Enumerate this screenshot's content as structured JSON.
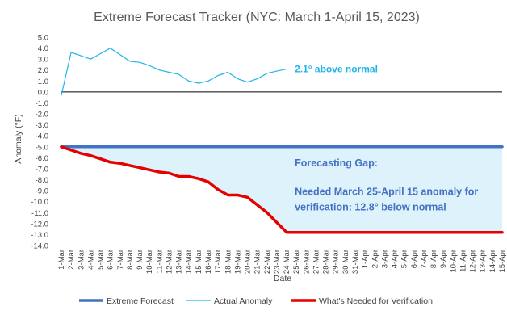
{
  "chart_data": {
    "type": "line",
    "title": "Extreme Forecast Tracker (NYC: March 1-April 15, 2023)",
    "xlabel": "Date",
    "ylabel": "Anomaly (°F)",
    "ylim": [
      -14.0,
      5.0
    ],
    "ytick_step": 1.0,
    "grid": false,
    "legend_position": "bottom",
    "categories": [
      "1-Mar",
      "2-Mar",
      "3-Mar",
      "4-Mar",
      "5-Mar",
      "6-Mar",
      "7-Mar",
      "8-Mar",
      "9-Mar",
      "10-Mar",
      "11-Mar",
      "12-Mar",
      "13-Mar",
      "14-Mar",
      "15-Mar",
      "16-Mar",
      "17-Mar",
      "18-Mar",
      "19-Mar",
      "20-Mar",
      "21-Mar",
      "22-Mar",
      "23-Mar",
      "24-Mar",
      "25-Mar",
      "26-Mar",
      "27-Mar",
      "28-Mar",
      "29-Mar",
      "30-Mar",
      "31-Mar",
      "1-Apr",
      "2-Apr",
      "3-Apr",
      "4-Apr",
      "5-Apr",
      "6-Apr",
      "7-Apr",
      "8-Apr",
      "9-Apr",
      "10-Apr",
      "11-Apr",
      "12-Apr",
      "13-Apr",
      "14-Apr",
      "15-Apr"
    ],
    "series": [
      {
        "name": "Extreme Forecast",
        "color": "#4472c4",
        "values": [
          -5.0,
          -5.0,
          -5.0,
          -5.0,
          -5.0,
          -5.0,
          -5.0,
          -5.0,
          -5.0,
          -5.0,
          -5.0,
          -5.0,
          -5.0,
          -5.0,
          -5.0,
          -5.0,
          -5.0,
          -5.0,
          -5.0,
          -5.0,
          -5.0,
          -5.0,
          -5.0,
          -5.0,
          -5.0,
          -5.0,
          -5.0,
          -5.0,
          -5.0,
          -5.0,
          -5.0,
          -5.0,
          -5.0,
          -5.0,
          -5.0,
          -5.0,
          -5.0,
          -5.0,
          -5.0,
          -5.0,
          -5.0,
          -5.0,
          -5.0,
          -5.0,
          -5.0,
          -5.0
        ]
      },
      {
        "name": "Actual Anomaly",
        "color": "#1fb5e8",
        "values": [
          -0.3,
          3.6,
          3.3,
          3.0,
          3.5,
          4.0,
          3.4,
          2.8,
          2.7,
          2.4,
          2.0,
          1.8,
          1.6,
          1.0,
          0.8,
          1.0,
          1.5,
          1.8,
          1.2,
          0.9,
          1.2,
          1.7,
          1.9,
          2.1,
          null,
          null,
          null,
          null,
          null,
          null,
          null,
          null,
          null,
          null,
          null,
          null,
          null,
          null,
          null,
          null,
          null,
          null,
          null,
          null,
          null,
          null
        ]
      },
      {
        "name": "What's Needed for Verification",
        "color": "#e60000",
        "values": [
          -5.0,
          -5.3,
          -5.6,
          -5.8,
          -6.1,
          -6.4,
          -6.5,
          -6.7,
          -6.9,
          -7.1,
          -7.3,
          -7.4,
          -7.7,
          -7.7,
          -7.9,
          -8.2,
          -8.9,
          -9.4,
          -9.4,
          -9.6,
          -10.3,
          -11.0,
          -11.9,
          -12.8,
          -12.8,
          -12.8,
          -12.8,
          -12.8,
          -12.8,
          -12.8,
          -12.8,
          -12.8,
          -12.8,
          -12.8,
          -12.8,
          -12.8,
          -12.8,
          -12.8,
          -12.8,
          -12.8,
          -12.8,
          -12.8,
          -12.8,
          -12.8,
          -12.8,
          -12.8
        ]
      }
    ],
    "gap_fill_color": "#ddf2fb",
    "annotations": [
      {
        "text": "2.1° above normal",
        "x": "24-Mar",
        "y": 2.1,
        "color": "#1fb5e8"
      },
      {
        "text": "Forecasting Gap:",
        "x": "24-Mar",
        "y": -6.5,
        "color": "#4472c4"
      },
      {
        "text": "Needed March 25-April 15 anomaly for",
        "x": "24-Mar",
        "y": -9.1,
        "color": "#4472c4"
      },
      {
        "text": "verification: 12.8° below normal",
        "x": "24-Mar",
        "y": -10.5,
        "color": "#4472c4"
      }
    ]
  }
}
